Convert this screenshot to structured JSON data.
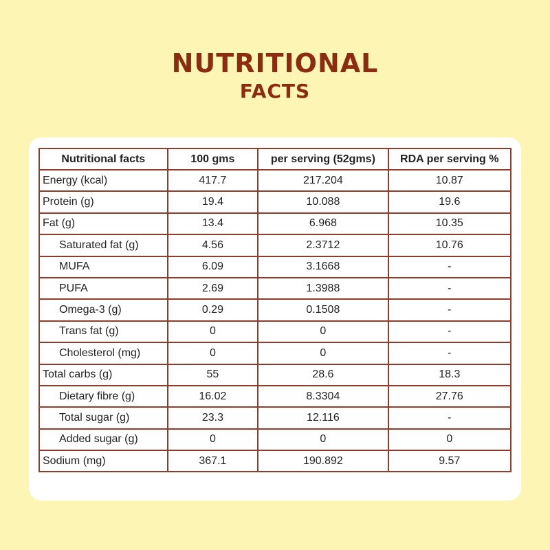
{
  "header": {
    "title": "NUTRITIONAL",
    "subtitle": "FACTS"
  },
  "table": {
    "headers": [
      "Nutritional facts",
      "100 gms",
      "per serving (52gms)",
      "RDA per serving %"
    ],
    "rows": [
      {
        "cells": [
          "Energy (kcal)",
          "417.7",
          "217.204",
          "10.87"
        ],
        "sub": false
      },
      {
        "cells": [
          "Protein (g)",
          "19.4",
          "10.088",
          "19.6"
        ],
        "sub": false
      },
      {
        "cells": [
          "Fat (g)",
          "13.4",
          "6.968",
          "10.35"
        ],
        "sub": false
      },
      {
        "cells": [
          "Saturated fat (g)",
          "4.56",
          "2.3712",
          "10.76"
        ],
        "sub": true
      },
      {
        "cells": [
          "MUFA",
          "6.09",
          "3.1668",
          "-"
        ],
        "sub": true
      },
      {
        "cells": [
          "PUFA",
          "2.69",
          "1.3988",
          "-"
        ],
        "sub": true
      },
      {
        "cells": [
          "Omega-3 (g)",
          "0.29",
          "0.1508",
          "-"
        ],
        "sub": true
      },
      {
        "cells": [
          "Trans fat (g)",
          "0",
          "0",
          "-"
        ],
        "sub": true
      },
      {
        "cells": [
          "Cholesterol (mg)",
          "0",
          "0",
          "-"
        ],
        "sub": true
      },
      {
        "cells": [
          "Total carbs (g)",
          "55",
          "28.6",
          "18.3"
        ],
        "sub": false
      },
      {
        "cells": [
          "Dietary fibre (g)",
          "16.02",
          "8.3304",
          "27.76"
        ],
        "sub": true
      },
      {
        "cells": [
          "Total sugar (g)",
          "23.3",
          "12.116",
          "-"
        ],
        "sub": true
      },
      {
        "cells": [
          "Added sugar (g)",
          "0",
          "0",
          "0"
        ],
        "sub": true
      },
      {
        "cells": [
          "Sodium (mg)",
          "367.1",
          "190.892",
          "9.57"
        ],
        "sub": false
      }
    ]
  }
}
